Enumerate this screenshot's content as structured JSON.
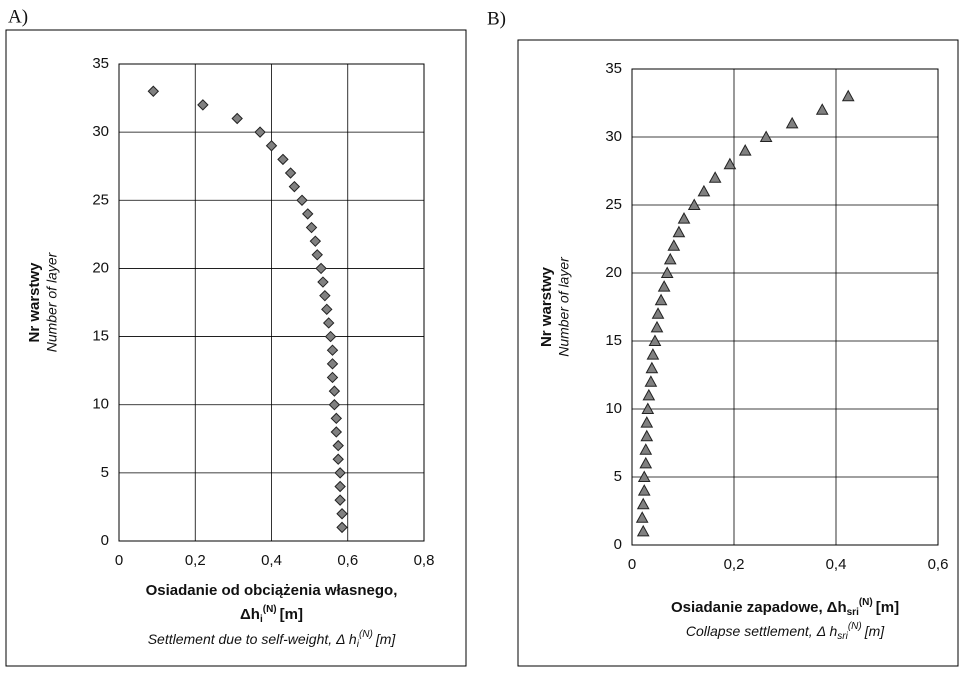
{
  "chart_data": [
    {
      "type": "scatter",
      "panel": "A)",
      "y_label": "Nr warstwy",
      "y_label_en": "Number of layer",
      "x_label": "Osiadanie od obciążenia własnego,",
      "x_symbol": {
        "base": "Δh",
        "sub": "i",
        "sup": "(N)",
        "unit": "[m]"
      },
      "x_label_en": "Settlement due to self-weight,",
      "x_symbol_en": {
        "base": "Δ h",
        "sub": "i",
        "sup": "(N)",
        "unit": "[m]"
      },
      "marker": "diamond",
      "color": "#808080",
      "x": [
        0.09,
        0.22,
        0.31,
        0.37,
        0.4,
        0.43,
        0.45,
        0.46,
        0.48,
        0.495,
        0.505,
        0.515,
        0.52,
        0.53,
        0.535,
        0.54,
        0.545,
        0.55,
        0.555,
        0.56,
        0.56,
        0.56,
        0.565,
        0.565,
        0.57,
        0.57,
        0.575,
        0.575,
        0.58,
        0.58,
        0.58,
        0.585,
        0.585
      ],
      "y": [
        33,
        32,
        31,
        30,
        29,
        28,
        27,
        26,
        25,
        24,
        23,
        22,
        21,
        20,
        19,
        18,
        17,
        16,
        15,
        14,
        13,
        12,
        11,
        10,
        9,
        8,
        7,
        6,
        5,
        4,
        3,
        2,
        1
      ],
      "xlim": [
        0,
        0.8
      ],
      "xticks": [
        0,
        {
          "value": 0.2,
          "label": "0,2"
        },
        {
          "value": 0.4,
          "label": "0,4"
        },
        {
          "value": 0.6,
          "label": "0,6"
        },
        {
          "value": 0.8,
          "label": "0,8"
        }
      ],
      "ylim": [
        0,
        35
      ],
      "yticks": [
        0,
        5,
        10,
        15,
        20,
        25,
        30,
        35
      ],
      "grid": true
    },
    {
      "type": "scatter",
      "panel": "B)",
      "y_label": "Nr warstwy",
      "y_label_en": "Number of layer",
      "x_label": "Osiadanie zapadowe,",
      "x_symbol": {
        "base": "Δh",
        "sub": "sri",
        "sup": "(N)",
        "unit": "[m]"
      },
      "x_label_en": "Collapse settlement,",
      "x_symbol_en": {
        "base": "Δ h",
        "sub": "sri",
        "sup": "(N)",
        "unit": "[m]"
      },
      "marker": "triangle",
      "color": "#808080",
      "x": [
        0.424,
        0.373,
        0.314,
        0.263,
        0.222,
        0.192,
        0.163,
        0.141,
        0.122,
        0.102,
        0.092,
        0.082,
        0.075,
        0.069,
        0.063,
        0.057,
        0.051,
        0.049,
        0.045,
        0.041,
        0.039,
        0.037,
        0.033,
        0.031,
        0.029,
        0.029,
        0.027,
        0.027,
        0.024,
        0.024,
        0.022,
        0.02,
        0.022
      ],
      "y": [
        33,
        32,
        31,
        30,
        29,
        28,
        27,
        26,
        25,
        24,
        23,
        22,
        21,
        20,
        19,
        18,
        17,
        16,
        15,
        14,
        13,
        12,
        11,
        10,
        9,
        8,
        7,
        6,
        5,
        4,
        3,
        2,
        1
      ],
      "xlim": [
        0,
        0.6
      ],
      "xticks": [
        0,
        {
          "value": 0.2,
          "label": "0,2"
        },
        {
          "value": 0.4,
          "label": "0,4"
        },
        {
          "value": 0.6,
          "label": "0,6"
        }
      ],
      "ylim": [
        0,
        35
      ],
      "yticks": [
        0,
        5,
        10,
        15,
        20,
        25,
        30,
        35
      ],
      "grid": true
    }
  ]
}
